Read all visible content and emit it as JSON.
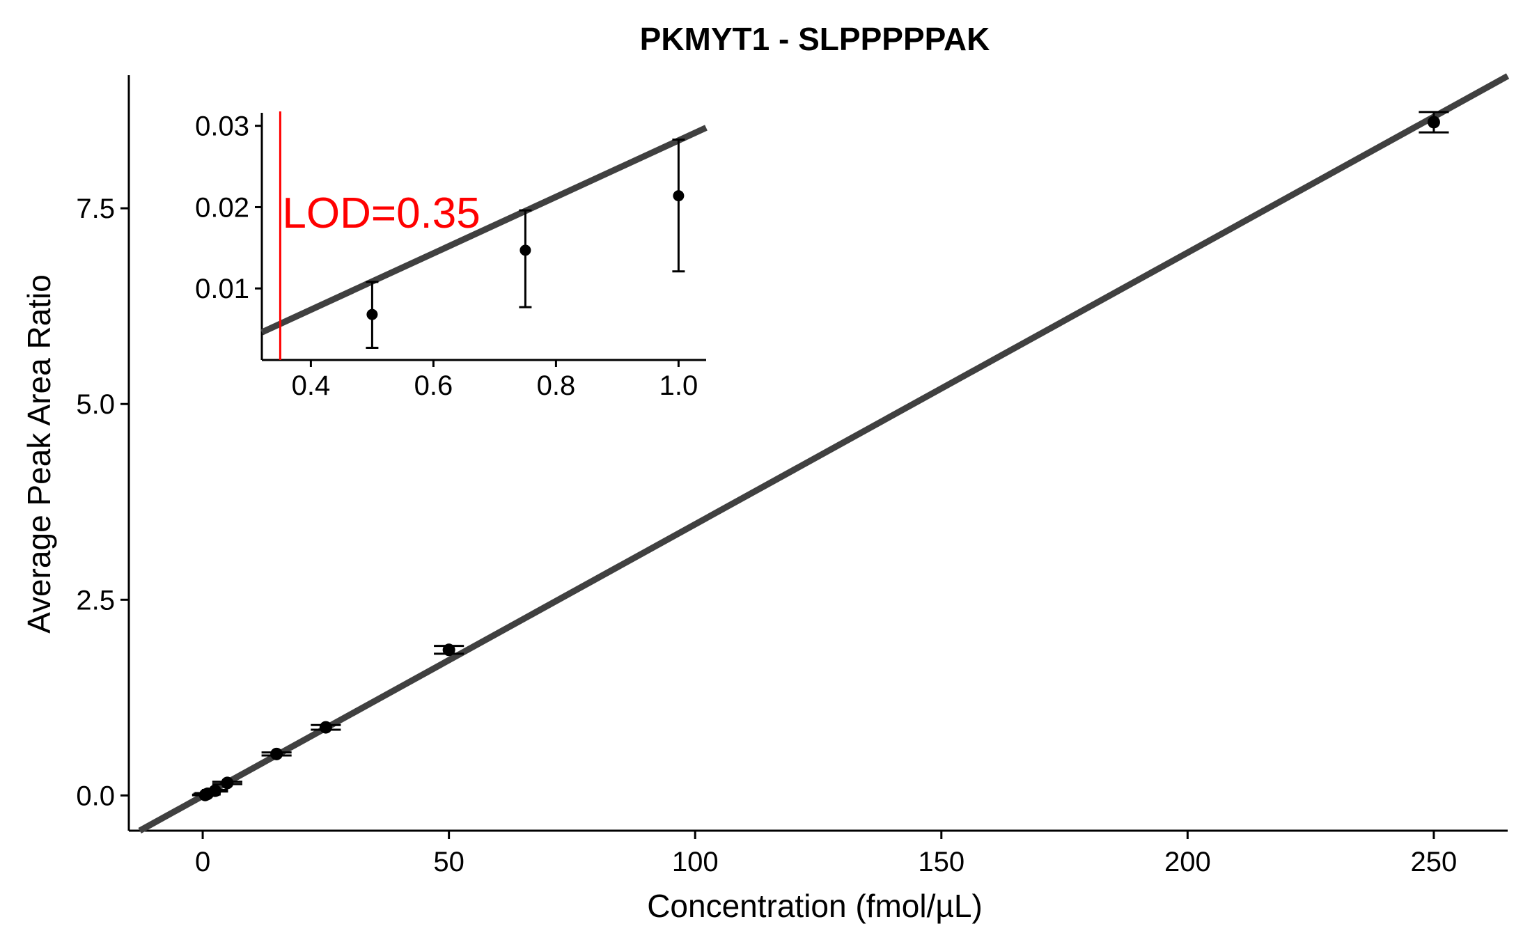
{
  "chart_data": [
    {
      "type": "scatter",
      "title": "PKMYT1 - SLPPPPPAK",
      "xlabel": "Concentration (fmol/µL)",
      "ylabel": "Average Peak Area Ratio",
      "xlim": [
        -15,
        265
      ],
      "ylim": [
        -0.45,
        9.2
      ],
      "xticks": [
        0,
        50,
        100,
        150,
        200,
        250
      ],
      "xtick_labels": [
        "0",
        "50",
        "100",
        "150",
        "200",
        "250"
      ],
      "yticks": [
        0,
        2.5,
        5,
        7.5
      ],
      "ytick_labels": [
        "0.0",
        "2.5",
        "5.0",
        "7.5"
      ],
      "grid": false,
      "points": [
        {
          "x": 0.5,
          "y": 0.006,
          "err_y": 0.004,
          "err_x": 1.8
        },
        {
          "x": 0.75,
          "y": 0.014,
          "err_y": 0.007,
          "err_x": 1.8
        },
        {
          "x": 1.0,
          "y": 0.021,
          "err_y": 0.009,
          "err_x": 1.8
        },
        {
          "x": 2.5,
          "y": 0.06,
          "err_y": 0.01,
          "err_x": 1.8
        },
        {
          "x": 5,
          "y": 0.16,
          "err_y": 0.015,
          "err_x": 2.2
        },
        {
          "x": 15,
          "y": 0.53,
          "err_y": 0.02,
          "err_x": 2.2
        },
        {
          "x": 25,
          "y": 0.87,
          "err_y": 0.03,
          "err_x": 2.2
        },
        {
          "x": 50,
          "y": 1.86,
          "err_y": 0.05,
          "err_x": 2.2
        },
        {
          "x": 250,
          "y": 8.6,
          "err_y": 0.13,
          "err_x": 2.2
        }
      ],
      "fit_line": {
        "slope": 0.0347,
        "intercept": -0.0065,
        "color": "#404040"
      }
    },
    {
      "type": "scatter",
      "role": "inset",
      "xlim": [
        0.32,
        1.045
      ],
      "ylim": [
        0.0012,
        0.0316
      ],
      "xticks": [
        0.4,
        0.6,
        0.8,
        1.0
      ],
      "xtick_labels": [
        "0.4",
        "0.6",
        "0.8",
        "1.0"
      ],
      "yticks": [
        0.01,
        0.02,
        0.03
      ],
      "ytick_labels": [
        "0.01",
        "0.02",
        "0.03"
      ],
      "points": [
        {
          "x": 0.5,
          "y": 0.0068,
          "err_low": 0.0027,
          "err_high": 0.0108
        },
        {
          "x": 0.75,
          "y": 0.0147,
          "err_low": 0.0077,
          "err_high": 0.0196
        },
        {
          "x": 1.0,
          "y": 0.0214,
          "err_low": 0.0121,
          "err_high": 0.0283
        }
      ],
      "fit_line": {
        "slope": 0.0347,
        "intercept": -0.0065,
        "color": "#404040"
      },
      "lod": {
        "x": 0.35,
        "label": "LOD=0.35",
        "color": "#ff0000"
      }
    }
  ]
}
